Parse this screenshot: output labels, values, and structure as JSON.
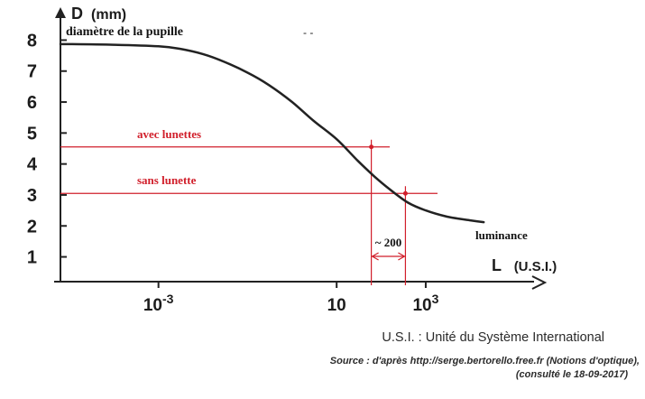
{
  "chart_data": {
    "type": "line",
    "y_axis": {
      "label": "D",
      "unit": "(mm)",
      "ticks": [
        "1",
        "2",
        "3",
        "4",
        "5",
        "6",
        "7",
        "8"
      ],
      "ylim": [
        0.2,
        8.8
      ]
    },
    "x_axis": {
      "label": "L",
      "unit": "(U.S.I.)",
      "scale": "log",
      "ticks": [
        {
          "base": "10",
          "exp": "-3",
          "value": 0.001
        },
        {
          "base": "10",
          "exp": "",
          "value": 10
        },
        {
          "base": "10",
          "exp": "3",
          "value": 1000
        }
      ],
      "xlim": [
        6.3e-06,
        270000
      ]
    },
    "series": [
      {
        "x": [
          6.3e-06,
          1e-05,
          0.0001,
          0.001,
          0.003,
          0.01,
          0.03,
          0.1,
          0.3,
          1,
          3,
          10,
          30,
          70,
          150,
          400,
          1000,
          3000,
          10000,
          20000
        ],
        "y": [
          7.87,
          7.87,
          7.85,
          7.8,
          7.72,
          7.55,
          7.3,
          6.95,
          6.55,
          6.0,
          5.4,
          4.8,
          4.1,
          3.6,
          3.2,
          2.75,
          2.5,
          2.3,
          2.18,
          2.12
        ]
      }
    ],
    "annotations": {
      "curve_start_label": "diamètre de la pupille",
      "curve_end_label": "luminance",
      "with_glasses": {
        "label": "avec lunettes",
        "D": 4.55,
        "L": 60
      },
      "without_glasses": {
        "label": "sans lunette",
        "D": 3.05,
        "L": 350
      },
      "ratio_label": "~ 200",
      "accent_color": "#d11f2b"
    },
    "grid": false
  },
  "stray_text": "- -",
  "footer": {
    "definition": "U.S.I. : Unité du Système International",
    "source_line1": "Source : d'après http://serge.bertorello.free.fr (Notions d'optique),",
    "source_line2": "(consulté le 18-09-2017)"
  }
}
